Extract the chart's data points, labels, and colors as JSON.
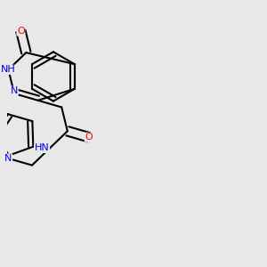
{
  "bg_color": "#e8e8e8",
  "bond_color": "#000000",
  "bond_width": 1.5,
  "atom_colors": {
    "N": "#0000ff",
    "O": "#ff0000",
    "H": "#708090",
    "C": "#000000"
  },
  "font_size": 8
}
